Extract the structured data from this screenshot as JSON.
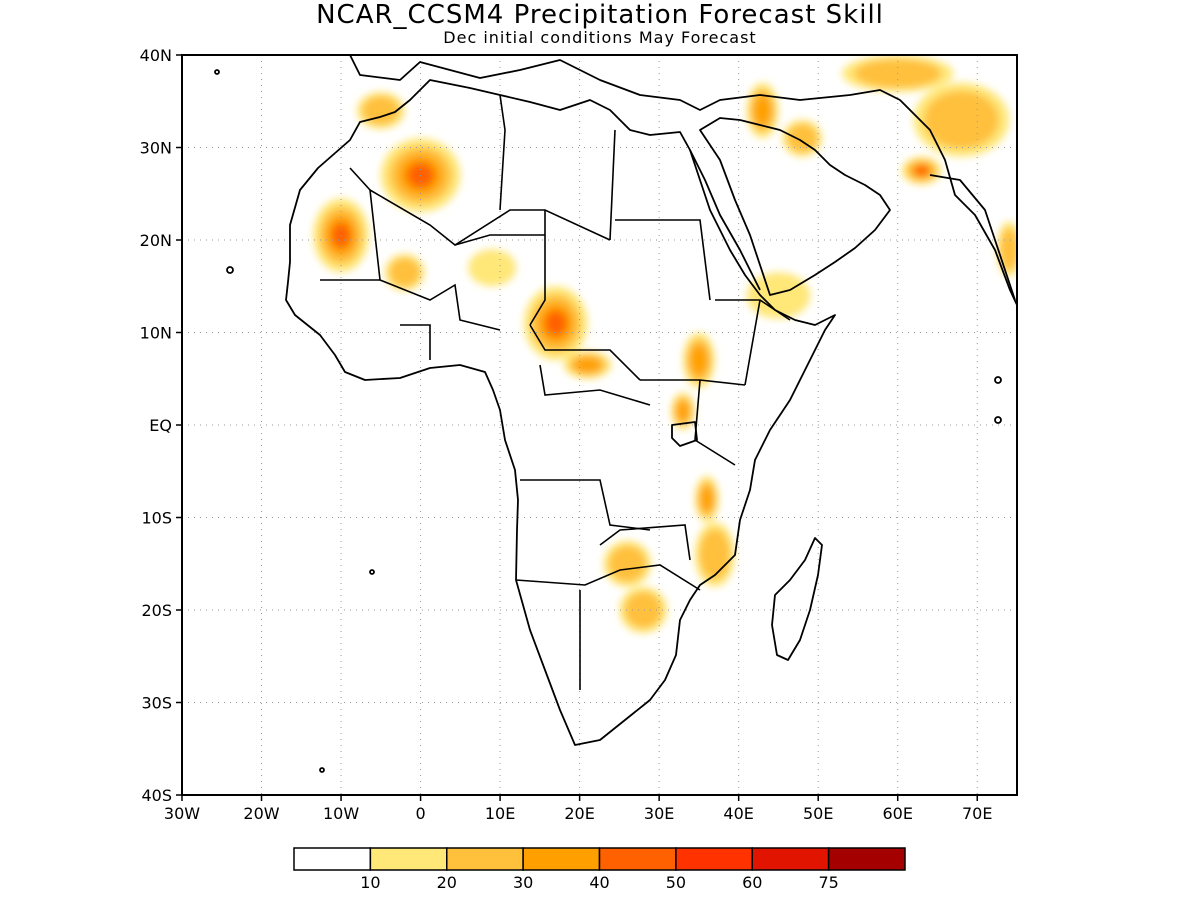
{
  "title": "NCAR_CCSM4 Precipitation Forecast Skill",
  "subtitle": "Dec initial conditions   May Forecast",
  "map": {
    "lon_range": [
      -30,
      75
    ],
    "lat_range": [
      -40,
      40
    ],
    "lat_ticks": [
      {
        "value": 40,
        "label": "40N"
      },
      {
        "value": 30,
        "label": "30N"
      },
      {
        "value": 20,
        "label": "20N"
      },
      {
        "value": 10,
        "label": "10N"
      },
      {
        "value": 0,
        "label": "EQ"
      },
      {
        "value": -10,
        "label": "10S"
      },
      {
        "value": -20,
        "label": "20S"
      },
      {
        "value": -30,
        "label": "30S"
      },
      {
        "value": -40,
        "label": "40S"
      }
    ],
    "lon_ticks": [
      {
        "value": -30,
        "label": "30W"
      },
      {
        "value": -20,
        "label": "20W"
      },
      {
        "value": -10,
        "label": "10W"
      },
      {
        "value": 0,
        "label": "0"
      },
      {
        "value": 10,
        "label": "10E"
      },
      {
        "value": 20,
        "label": "20E"
      },
      {
        "value": 30,
        "label": "30E"
      },
      {
        "value": 40,
        "label": "40E"
      },
      {
        "value": 50,
        "label": "50E"
      },
      {
        "value": 60,
        "label": "60E"
      },
      {
        "value": 70,
        "label": "70E"
      }
    ],
    "grid": "dotted"
  },
  "colorbar": {
    "colors": [
      "#ffffff",
      "#ffe778",
      "#ffc03c",
      "#ffa000",
      "#ff6000",
      "#ff3200",
      "#e11400",
      "#a50000"
    ],
    "labels": [
      "10",
      "20",
      "30",
      "40",
      "50",
      "60",
      "75"
    ]
  },
  "skill_regions": [
    {
      "lon": 0,
      "lat": 27,
      "rx": 5,
      "ry": 4,
      "level": 4
    },
    {
      "lon": -10,
      "lat": 20.5,
      "rx": 3.5,
      "ry": 4,
      "level": 4
    },
    {
      "lon": 17,
      "lat": 11,
      "rx": 4,
      "ry": 4,
      "level": 4
    },
    {
      "lon": 21,
      "lat": 6.5,
      "rx": 3,
      "ry": 1.5,
      "level": 3
    },
    {
      "lon": 35,
      "lat": 7,
      "rx": 2,
      "ry": 3,
      "level": 3
    },
    {
      "lon": 33,
      "lat": 1.5,
      "rx": 1.5,
      "ry": 2,
      "level": 3
    },
    {
      "lon": 36,
      "lat": -8,
      "rx": 1.5,
      "ry": 2.5,
      "level": 3
    },
    {
      "lon": 63,
      "lat": 27.5,
      "rx": 2.5,
      "ry": 1.5,
      "level": 5
    },
    {
      "lon": 43,
      "lat": 34,
      "rx": 2,
      "ry": 3,
      "level": 3
    },
    {
      "lon": 26,
      "lat": -15,
      "rx": 3,
      "ry": 2.5,
      "level": 2
    },
    {
      "lon": 37,
      "lat": -14,
      "rx": 2.5,
      "ry": 3.5,
      "level": 2
    },
    {
      "lon": 28,
      "lat": -20,
      "rx": 3,
      "ry": 2.5,
      "level": 2
    },
    {
      "lon": 45,
      "lat": 14,
      "rx": 4,
      "ry": 2.5,
      "level": 1
    },
    {
      "lon": 48,
      "lat": 31,
      "rx": 2.5,
      "ry": 2,
      "level": 2
    },
    {
      "lon": -5,
      "lat": 34,
      "rx": 3,
      "ry": 2,
      "level": 2
    },
    {
      "lon": 9,
      "lat": 17,
      "rx": 3,
      "ry": 2,
      "level": 1
    },
    {
      "lon": -2,
      "lat": 16.5,
      "rx": 2.5,
      "ry": 2,
      "level": 2
    },
    {
      "lon": 68,
      "lat": 33,
      "rx": 6,
      "ry": 4,
      "level": 2
    },
    {
      "lon": 74,
      "lat": 19,
      "rx": 1.5,
      "ry": 3,
      "level": 2
    },
    {
      "lon": 60,
      "lat": 38,
      "rx": 7,
      "ry": 2,
      "level": 2
    }
  ]
}
